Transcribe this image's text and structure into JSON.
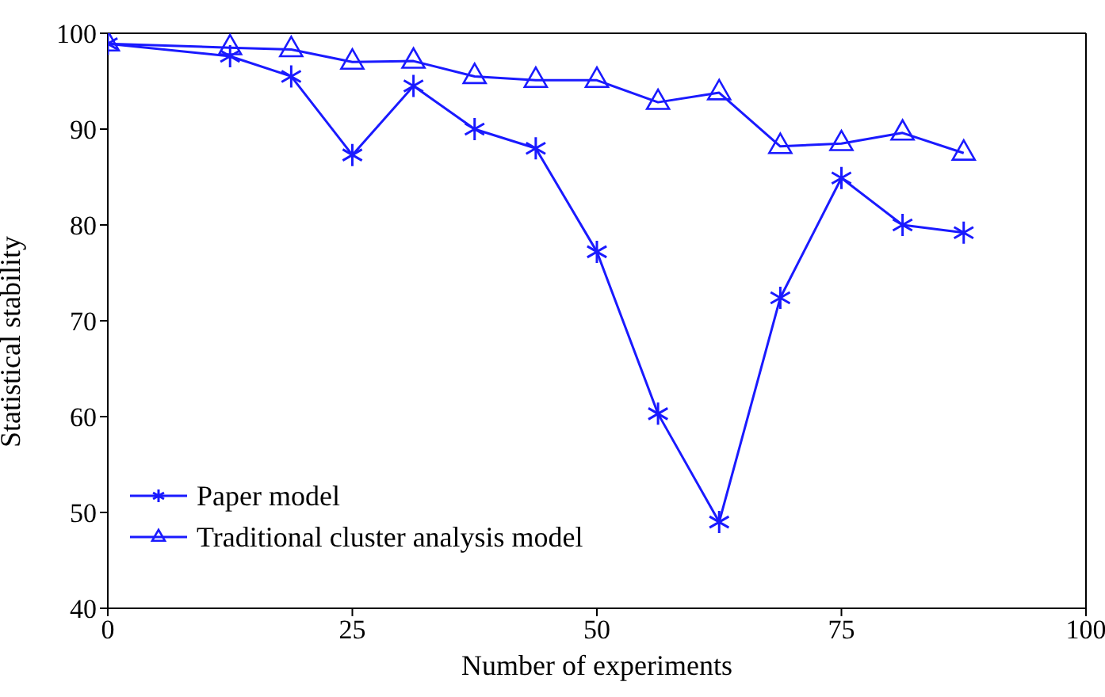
{
  "chart_data": {
    "type": "line",
    "xlabel": "Number of experiments",
    "ylabel": "Statistical stability",
    "x": [
      0,
      12.5,
      18.75,
      25,
      31.25,
      37.5,
      43.75,
      50,
      56.25,
      62.5,
      68.75,
      75,
      81.25,
      87.5
    ],
    "series": [
      {
        "name": "Paper model",
        "color": "#1a1aff",
        "marker": "cross",
        "values": [
          98.9,
          97.6,
          95.5,
          87.3,
          94.5,
          90,
          88,
          77.2,
          60.3,
          49,
          72.4,
          84.9,
          80,
          79.2
        ]
      },
      {
        "name": "Traditional cluster analysis model",
        "color": "#1a1aff",
        "marker": "triangle",
        "values": [
          98.9,
          98.5,
          98.3,
          97,
          97.1,
          95.5,
          95.1,
          95.1,
          92.8,
          93.8,
          88.2,
          88.5,
          89.6,
          87.5
        ]
      }
    ],
    "xlim": [
      0,
      100
    ],
    "xticks": [
      0,
      25,
      50,
      75,
      100
    ],
    "ylim": [
      40,
      100
    ],
    "yticks": [
      40,
      50,
      60,
      70,
      80,
      90,
      100
    ],
    "grid": false,
    "legend": "bottom left",
    "line_style": "solid"
  }
}
